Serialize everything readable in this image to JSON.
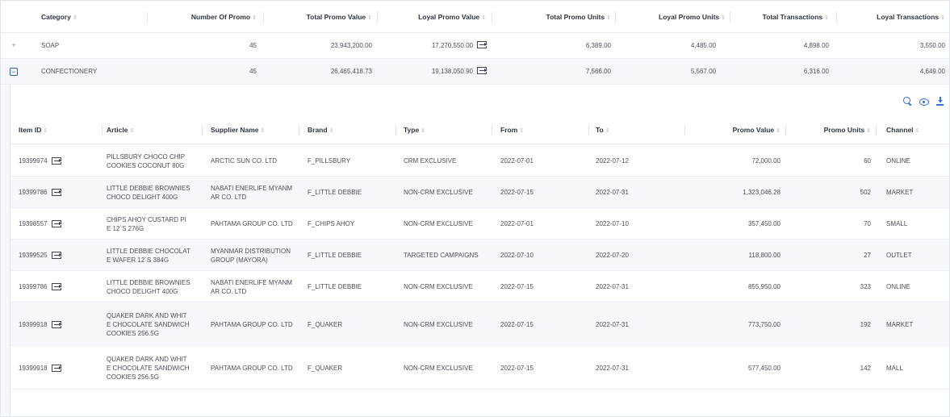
{
  "top_table": {
    "columns": [
      "Category",
      "Number Of Promo",
      "Total Promo Value",
      "Loyal Promo Value",
      "Total Promo Units",
      "Loyal Promo Units",
      "Total Transactions",
      "Loyal Transactions"
    ],
    "sort_glyph": "⇕",
    "rows": [
      {
        "expand": "+",
        "category": "SOAP",
        "num_promo": "45",
        "total_value": "23,943,200.00",
        "loyal_value": "17,270,550.00",
        "total_units": "6,389.00",
        "loyal_units": "4,485.00",
        "total_tx": "4,898.00",
        "loyal_tx": "3,550.00"
      },
      {
        "expand": "−",
        "category": "CONFECTIONERY",
        "num_promo": "45",
        "total_value": "26,465,418.73",
        "loyal_value": "19,138,050.90",
        "total_units": "7,566.00",
        "loyal_units": "5,567.00",
        "total_tx": "6,316.00",
        "loyal_tx": "4,649.00"
      }
    ]
  },
  "toolbar": {
    "icons": [
      "search-icon",
      "eye-icon",
      "download-icon"
    ]
  },
  "sub_table": {
    "columns": [
      "Item ID",
      "Article",
      "Supplier Name",
      "Brand",
      "Type",
      "From",
      "To",
      "Promo Value",
      "Promo Units",
      "Channel"
    ],
    "rows": [
      {
        "item_id": "19399974",
        "article": "PILLSBURY CHOCO CHIP COOKIES COCONUT 80G",
        "supplier": "ARCTIC SUN CO. LTD",
        "brand": "F_PILLSBURY",
        "type": "CRM EXCLUSIVE",
        "from": "2022-07-01",
        "to": "2022-07-12",
        "promo_value": "72,000.00",
        "promo_units": "60",
        "channel": "ONLINE"
      },
      {
        "item_id": "19399786",
        "article": "LITTLE DEBBIE BROWNIES CHOCO DELIGHT 400G",
        "supplier": "NABATI ENERLIFE MYANMAR CO. LTD",
        "brand": "F_LITTLE DEBBIE",
        "type": "NON-CRM EXCLUSIVE",
        "from": "2022-07-15",
        "to": "2022-07-31",
        "promo_value": "1,323,046.28",
        "promo_units": "502",
        "channel": "MARKET"
      },
      {
        "item_id": "19398557",
        "article": "CHIPS AHOY CUSTARD PIE 12`S 276G",
        "supplier": "PAHTAMA GROUP CO. LTD",
        "brand": "F_CHIPS AHOY",
        "type": "NON-CRM EXCLUSIVE",
        "from": "2022-07-01",
        "to": "2022-07-10",
        "promo_value": "357,450.00",
        "promo_units": "70",
        "channel": "SMALL"
      },
      {
        "item_id": "19399525",
        "article": "LITTLE DEBBIE CHOCOLATE WAFER 12`S 384G",
        "supplier": "MYANMAR DISTRIBUTION GROUP (MAYORA)",
        "brand": "F_LITTLE DEBBIE",
        "type": "TARGETED CAMPAIGNS",
        "from": "2022-07-10",
        "to": "2022-07-20",
        "promo_value": "118,800.00",
        "promo_units": "27",
        "channel": "OUTLET"
      },
      {
        "item_id": "19399786",
        "article": "LITTLE DEBBIE BROWNIES CHOCO DELIGHT 400G",
        "supplier": "NABATI ENERLIFE MYANMAR CO. LTD",
        "brand": "F_LITTLE DEBBIE",
        "type": "NON-CRM EXCLUSIVE",
        "from": "2022-07-15",
        "to": "2022-07-31",
        "promo_value": "855,950.00",
        "promo_units": "323",
        "channel": "ONLINE"
      },
      {
        "item_id": "19399918",
        "article": "QUAKER DARK AND WHITE CHOCOLATE SANDWICH COOKIES 256.5G",
        "supplier": "PAHTAMA GROUP CO. LTD",
        "brand": "F_QUAKER",
        "type": "NON-CRM EXCLUSIVE",
        "from": "2022-07-15",
        "to": "2022-07-31",
        "promo_value": "773,750.00",
        "promo_units": "192",
        "channel": "MARKET"
      },
      {
        "item_id": "19399918",
        "article": "QUAKER DARK AND WHITE CHOCOLATE SANDWICH COOKIES 256.5G",
        "supplier": "PAHTAMA GROUP CO. LTD",
        "brand": "F_QUAKER",
        "type": "NON-CRM EXCLUSIVE",
        "from": "2022-07-15",
        "to": "2022-07-31",
        "promo_value": "577,450.00",
        "promo_units": "142",
        "channel": "MALL"
      }
    ]
  },
  "colors": {
    "accent": "#2f6fd6",
    "header_text": "#2f3440",
    "body_text": "#4a4f57",
    "row_alt": "#f6f8fb"
  }
}
